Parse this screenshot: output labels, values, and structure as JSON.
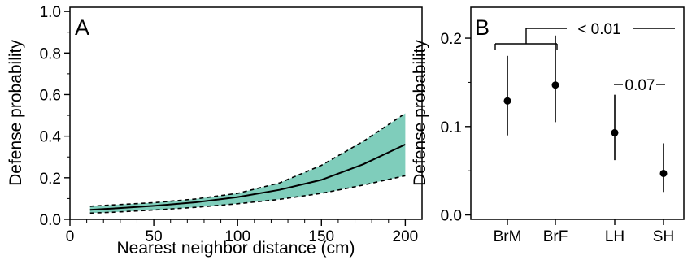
{
  "chart_data": [
    {
      "panel_label": "A",
      "type": "line",
      "xlabel": "Nearest neighbor distance (cm)",
      "ylabel": "Defense probability",
      "xlim": [
        0,
        210
      ],
      "ylim": [
        0,
        1.02
      ],
      "x_ticks": [
        "0",
        "50",
        "100",
        "150",
        "200"
      ],
      "y_ticks": [
        "0.0",
        "0.2",
        "0.4",
        "0.6",
        "0.8",
        "1.0"
      ],
      "band_color": "#7fcdbb",
      "line_color": "#000000",
      "series": [
        {
          "x": [
            12,
            25,
            50,
            75,
            100,
            125,
            150,
            175,
            200
          ],
          "y": [
            0.046,
            0.052,
            0.065,
            0.082,
            0.107,
            0.142,
            0.19,
            0.265,
            0.36
          ],
          "lower": [
            0.03,
            0.034,
            0.045,
            0.058,
            0.075,
            0.096,
            0.125,
            0.165,
            0.21
          ],
          "upper": [
            0.063,
            0.069,
            0.08,
            0.098,
            0.125,
            0.175,
            0.26,
            0.375,
            0.51
          ]
        }
      ]
    },
    {
      "panel_label": "B",
      "type": "scatter",
      "ylabel": "Defense probability",
      "categories": [
        "BrM",
        "BrF",
        "LH",
        "SH"
      ],
      "ylim": [
        -0.005,
        0.235
      ],
      "y_ticks": [
        "0.0",
        "0.1",
        "0.2"
      ],
      "values": [
        0.129,
        0.147,
        0.093,
        0.047
      ],
      "lower": [
        0.09,
        0.105,
        0.062,
        0.026
      ],
      "upper": [
        0.18,
        0.203,
        0.136,
        0.081
      ],
      "annotations": [
        "< 0.01",
        "0.07"
      ]
    }
  ]
}
